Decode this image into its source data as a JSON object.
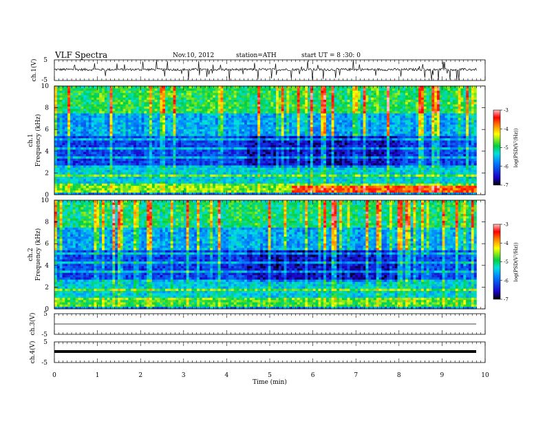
{
  "header": {
    "title": "VLF Spectra",
    "date": "Nov.10, 2012",
    "station": "station=ATH",
    "start": "start  UT =   8 :30: 0"
  },
  "chart_data": [
    {
      "type": "line",
      "panel": "ch1-waveform",
      "ylabel": "ch.1(V)",
      "ylim": [
        -5,
        5
      ],
      "yticks": [
        "5",
        "-5"
      ],
      "xlim": [
        0,
        10
      ],
      "data_extent_min": [
        0,
        9.8
      ],
      "baseline_v": 0.3,
      "noise_amplitude_v": 0.6,
      "spikes": "frequent spikes up to ±5 V throughout"
    },
    {
      "type": "heatmap",
      "panel": "ch1-spectrogram",
      "ylabel_channel": "ch.1",
      "ylabel": "Frequency  (kHz)",
      "ylim": [
        0,
        10
      ],
      "yticks": [
        "0",
        "2",
        "4",
        "6",
        "8",
        "10"
      ],
      "xlim": [
        0,
        10
      ],
      "data_extent_min": [
        0,
        9.8
      ],
      "colorbar": {
        "label": "log(PSD(V²/Hz))",
        "range": [
          -7,
          -3
        ],
        "ticks": [
          "-3",
          "-4",
          "-5",
          "-6",
          "-7"
        ]
      },
      "bands_logpsd": [
        {
          "f_khz": [
            0,
            0.3
          ],
          "value": -6.5
        },
        {
          "f_khz": [
            0.3,
            0.9
          ],
          "value": -4.6,
          "note": "red band after ~5.5 min"
        },
        {
          "f_khz": [
            0.9,
            2.5
          ],
          "value": -5.4
        },
        {
          "f_khz": [
            2.5,
            5.5
          ],
          "value": -6.2
        },
        {
          "f_khz": [
            5.5,
            7.5
          ],
          "value": -5.6
        },
        {
          "f_khz": [
            7.5,
            10
          ],
          "value": -4.9
        }
      ]
    },
    {
      "type": "heatmap",
      "panel": "ch2-spectrogram",
      "ylabel_channel": "ch.2",
      "ylabel": "Frequency  (kHz)",
      "ylim": [
        0,
        10
      ],
      "yticks": [
        "0",
        "2",
        "4",
        "6",
        "8",
        "10"
      ],
      "xlim": [
        0,
        10
      ],
      "data_extent_min": [
        0,
        9.8
      ],
      "colorbar": {
        "label": "log(PSD(V²/Hz))",
        "range": [
          -7,
          -3
        ],
        "ticks": [
          "-3",
          "-4",
          "-5",
          "-6",
          "-7"
        ]
      },
      "bands_logpsd": [
        {
          "f_khz": [
            0,
            0.3
          ],
          "value": -6.5
        },
        {
          "f_khz": [
            0.3,
            0.9
          ],
          "value": -4.8
        },
        {
          "f_khz": [
            0.9,
            2.5
          ],
          "value": -5.4
        },
        {
          "f_khz": [
            2.5,
            5.5
          ],
          "value": -6.2
        },
        {
          "f_khz": [
            5.5,
            7.5
          ],
          "value": -5.6
        },
        {
          "f_khz": [
            7.5,
            10
          ],
          "value": -5.0
        }
      ]
    },
    {
      "type": "line",
      "panel": "ch3-waveform",
      "ylabel": "ch.3(V)",
      "ylim": [
        -5,
        5
      ],
      "yticks": [
        "5",
        "-5"
      ],
      "xlim": [
        0,
        10
      ],
      "data_extent_min": [
        0,
        9.8
      ],
      "baseline_v": -0.3
    },
    {
      "type": "line",
      "panel": "ch4-waveform",
      "ylabel": "ch.4(V)",
      "ylim": [
        -5,
        5
      ],
      "yticks": [
        "5",
        "-5"
      ],
      "xlim": [
        0,
        10
      ],
      "data_extent_min": [
        0,
        9.8
      ],
      "baseline_v": -0.2,
      "note": "thick noisy trace"
    }
  ],
  "xaxis": {
    "label": "Time  (min)",
    "ticks": [
      "0",
      "1",
      "2",
      "3",
      "4",
      "5",
      "6",
      "7",
      "8",
      "9",
      "10"
    ]
  }
}
